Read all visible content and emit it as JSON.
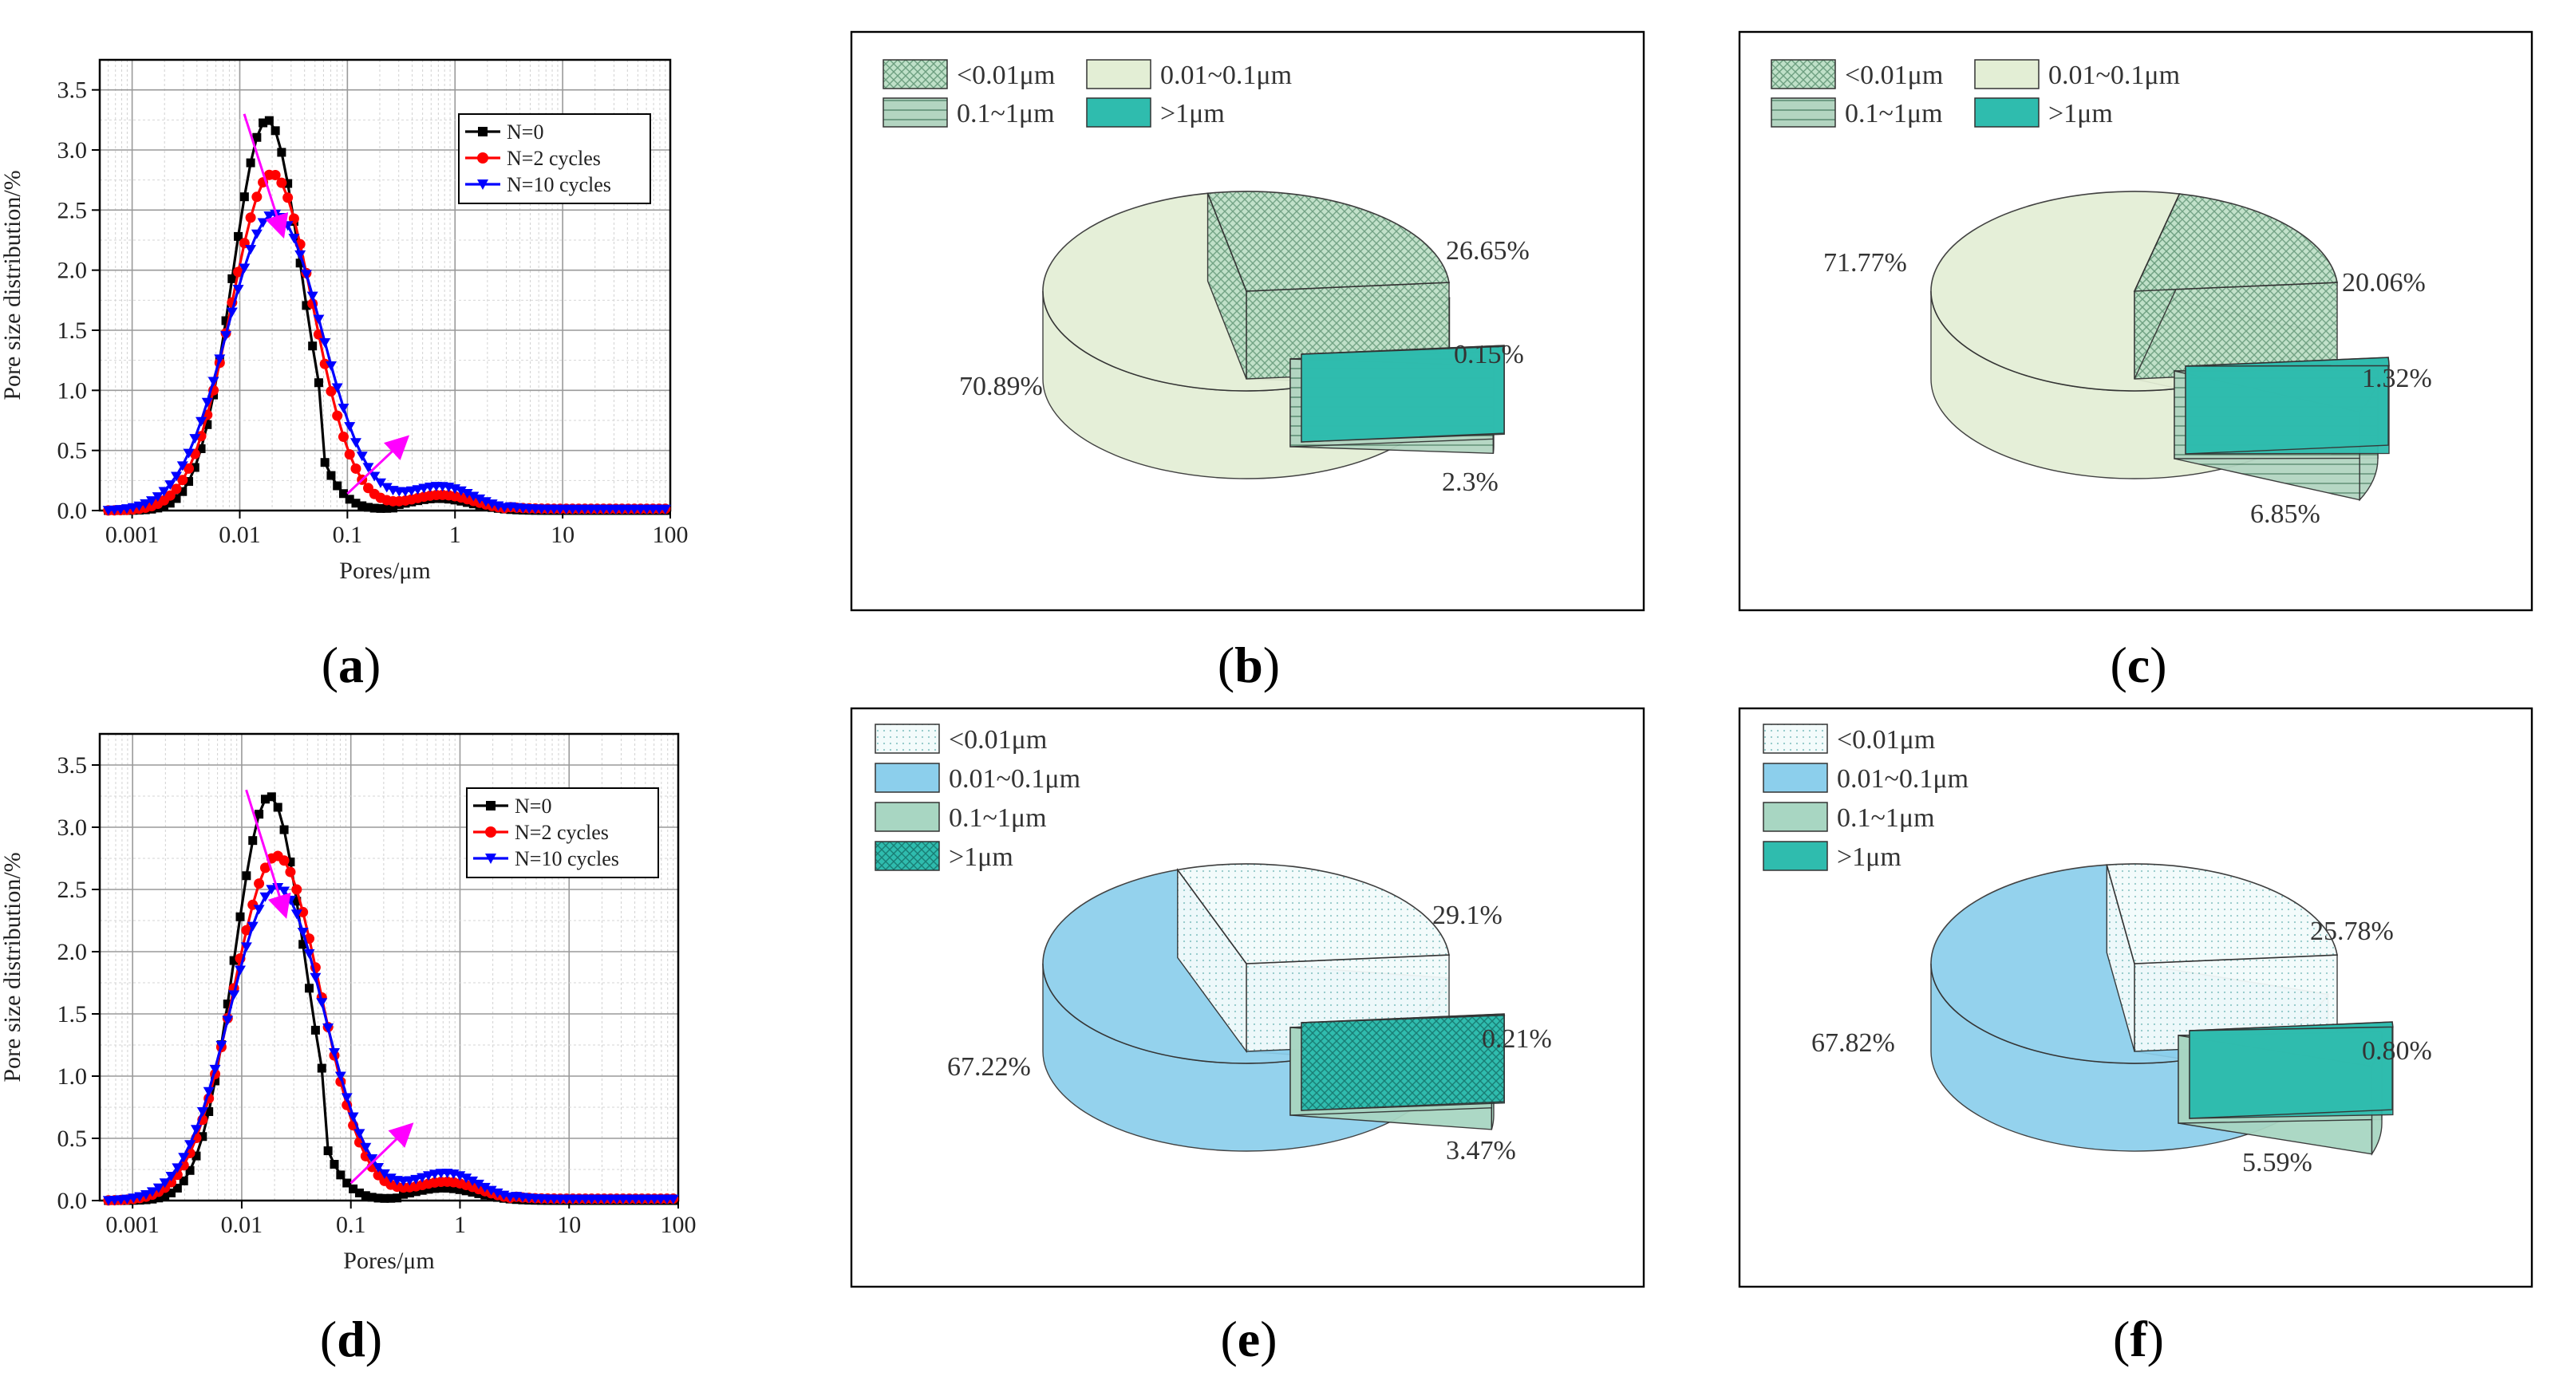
{
  "chart_data": [
    {
      "panel": "(a)",
      "panel_label": "a",
      "type": "line",
      "xscale": "log",
      "xlim": [
        0.0005,
        100
      ],
      "ylim": [
        0,
        3.75
      ],
      "xlabel": "Pores/μm",
      "ylabel": "Pore size distribution/%",
      "xticks": [
        "0.001",
        "0.01",
        "0.1",
        "1",
        "10",
        "100"
      ],
      "yticks": [
        "0.0",
        "0.5",
        "1.0",
        "1.5",
        "2.0",
        "2.5",
        "3.0",
        "3.5"
      ],
      "grid": true,
      "legend_position": "top-right",
      "series": [
        {
          "name": "N=0",
          "color": "#000000",
          "marker": "square",
          "peak": 3.25,
          "peak_x": 0.018,
          "width": 0.32,
          "tail_peak": 0.1,
          "tail_x": 0.7
        },
        {
          "name": "N=2 cycles",
          "color": "#ff0000",
          "marker": "circle",
          "peak": 2.8,
          "peak_x": 0.02,
          "width": 0.38,
          "tail_peak": 0.13,
          "tail_x": 0.75
        },
        {
          "name": "N=10 cycles",
          "color": "#0000ff",
          "marker": "triangle-down",
          "peak": 2.47,
          "peak_x": 0.021,
          "width": 0.44,
          "tail_peak": 0.2,
          "tail_x": 0.75
        }
      ],
      "annotations": [
        "arrow toward lower peak near 0.02 μm",
        "arrow toward larger pores near 0.2 μm"
      ]
    },
    {
      "panel": "(b)",
      "panel_label": "b",
      "type": "pie",
      "style": "3d-exploded",
      "legend": [
        "<0.01μm",
        "0.01~0.1μm",
        "0.1~1μm",
        ">1μm"
      ],
      "values": [
        26.65,
        70.89,
        2.3,
        0.15
      ],
      "value_labels": [
        "26.65%",
        "70.89%",
        "2.3%",
        "0.15%"
      ],
      "colors": [
        "#bfe0c8",
        "#e3eed5",
        "#b3d5c1",
        "#2fbcae"
      ],
      "patterns": [
        "crosshatch",
        "none",
        "horizontal-lines",
        "none"
      ],
      "legend_layout": "two-column"
    },
    {
      "panel": "(c)",
      "panel_label": "c",
      "type": "pie",
      "style": "3d-exploded",
      "legend": [
        "<0.01μm",
        "0.01~0.1μm",
        "0.1~1μm",
        ">1μm"
      ],
      "values": [
        20.06,
        71.77,
        6.85,
        1.32
      ],
      "value_labels": [
        "20.06%",
        "71.77%",
        "6.85%",
        "1.32%"
      ],
      "colors": [
        "#bfe0c8",
        "#e3eed5",
        "#b3d5c1",
        "#2fbcae"
      ],
      "patterns": [
        "crosshatch",
        "none",
        "horizontal-lines",
        "none"
      ],
      "legend_layout": "two-column"
    },
    {
      "panel": "(d)",
      "panel_label": "d",
      "type": "line",
      "xscale": "log",
      "xlim": [
        0.0005,
        100
      ],
      "ylim": [
        0,
        3.75
      ],
      "xlabel": "Pores/μm",
      "ylabel": "Pore size distribution/%",
      "xticks": [
        "0.001",
        "0.01",
        "0.1",
        "1",
        "10",
        "100"
      ],
      "yticks": [
        "0.0",
        "0.5",
        "1.0",
        "1.5",
        "2.0",
        "2.5",
        "3.0",
        "3.5"
      ],
      "grid": true,
      "legend_position": "top-right",
      "series": [
        {
          "name": "N=0",
          "color": "#000000",
          "marker": "square",
          "peak": 3.25,
          "peak_x": 0.018,
          "width": 0.32,
          "tail_peak": 0.1,
          "tail_x": 0.7
        },
        {
          "name": "N=2 cycles",
          "color": "#ff0000",
          "marker": "circle",
          "peak": 2.77,
          "peak_x": 0.021,
          "width": 0.4,
          "tail_peak": 0.15,
          "tail_x": 0.75
        },
        {
          "name": "N=10 cycles",
          "color": "#0000ff",
          "marker": "triangle-down",
          "peak": 2.52,
          "peak_x": 0.021,
          "width": 0.43,
          "tail_peak": 0.22,
          "tail_x": 0.75
        }
      ],
      "annotations": [
        "arrow toward lower peak near 0.02 μm",
        "arrow toward larger pores near 0.2 μm"
      ]
    },
    {
      "panel": "(e)",
      "panel_label": "e",
      "type": "pie",
      "style": "3d-exploded",
      "legend": [
        "<0.01μm",
        "0.01~0.1μm",
        "0.1~1μm",
        ">1μm"
      ],
      "values": [
        29.1,
        67.22,
        3.47,
        0.21
      ],
      "value_labels": [
        "29.1%",
        "67.22%",
        "3.47%",
        "0.21%"
      ],
      "colors": [
        "#eef9f9",
        "#8ccfec",
        "#a8d6c2",
        "#2fbcae"
      ],
      "patterns": [
        "dots",
        "none",
        "none",
        "crosshatch"
      ],
      "legend_layout": "one-column"
    },
    {
      "panel": "(f)",
      "panel_label": "f",
      "type": "pie",
      "style": "3d-exploded",
      "legend": [
        "<0.01μm",
        "0.01~0.1μm",
        "0.1~1μm",
        ">1μm"
      ],
      "values": [
        25.78,
        67.82,
        5.59,
        0.8
      ],
      "value_labels": [
        "25.78%",
        "67.82%",
        "5.59%",
        "0.80%"
      ],
      "colors": [
        "#eef9f9",
        "#8ccfec",
        "#a8d6c2",
        "#2fbcae"
      ],
      "patterns": [
        "dots",
        "none",
        "none",
        "none"
      ],
      "legend_layout": "one-column"
    }
  ]
}
